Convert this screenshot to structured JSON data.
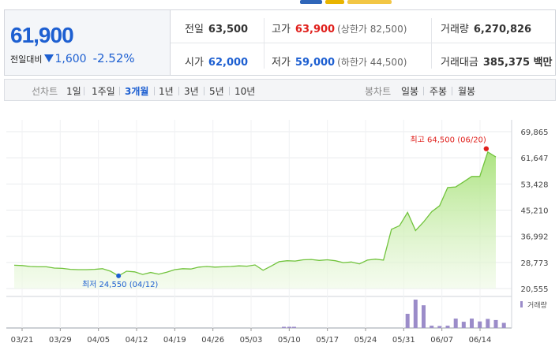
{
  "summary": {
    "price": "61,900",
    "change_label": "전일대비",
    "change_amount": "1,600",
    "change_percent": "-2.52%",
    "prev_close_label": "전일",
    "prev_close": "63,500",
    "high_label": "고가",
    "high": "63,900",
    "upper_limit": "(상한가 82,500)",
    "volume_label": "거래량",
    "volume": "6,270,826",
    "open_label": "시가",
    "open": "62,000",
    "low_label": "저가",
    "low": "59,000",
    "lower_limit": "(하한가 44,500)",
    "amount_label": "거래대금",
    "amount": "385,375 백만"
  },
  "toolbar": {
    "line_label": "선차트",
    "line_periods": [
      "1일",
      "1주일",
      "3개월",
      "1년",
      "3년",
      "5년",
      "10년"
    ],
    "active_period": "3개월",
    "candle_label": "봉차트",
    "candle_periods": [
      "일봉",
      "주봉",
      "월봉"
    ]
  },
  "colors": {
    "up": "#e0201c",
    "down": "#1d5fd1",
    "line": "#71c33c",
    "volume": "#9b8cc9"
  },
  "chart_data": {
    "type": "area",
    "x_tick_labels": [
      "03/21",
      "03/29",
      "04/05",
      "04/12",
      "04/19",
      "04/26",
      "05/03",
      "05/10",
      "05/17",
      "05/24",
      "05/31",
      "06/07",
      "06/14"
    ],
    "y_tick_labels": [
      "69,865",
      "61,647",
      "53,428",
      "45,210",
      "36,992",
      "28,773",
      "20,555"
    ],
    "ylim": [
      20555,
      69865
    ],
    "grid": true,
    "prices": [
      27900,
      27800,
      27500,
      27400,
      27400,
      27000,
      26900,
      26600,
      26500,
      26500,
      26600,
      26800,
      26000,
      24550,
      26000,
      25800,
      25000,
      25600,
      25100,
      25700,
      26500,
      26800,
      26700,
      27300,
      27500,
      27300,
      27400,
      27500,
      27700,
      27600,
      28000,
      26300,
      27600,
      29000,
      29300,
      29200,
      29600,
      29700,
      29400,
      29600,
      29300,
      28700,
      28900,
      28300,
      29500,
      29800,
      29500,
      39200,
      40300,
      44500,
      38800,
      41500,
      44700,
      46600,
      52300,
      52500,
      54100,
      55800,
      55800,
      63500,
      61900
    ],
    "max_annotation": "최고 64,500 (06/20)",
    "min_annotation": "최저 24,550 (04/12)",
    "volume_label": "거래량",
    "volumes": [
      0,
      0,
      0,
      0,
      0,
      0,
      0,
      0,
      0,
      0,
      0,
      0,
      0,
      0,
      0,
      0,
      0,
      0,
      0,
      0,
      0,
      0,
      0,
      0,
      0,
      0,
      0,
      0,
      0,
      0,
      0,
      0,
      0,
      0,
      0,
      0,
      0,
      0,
      0,
      0,
      0,
      0,
      0,
      0,
      0,
      0,
      0,
      0,
      0,
      0.5,
      1.0,
      0.8,
      0.08,
      0.07,
      0.08,
      0.33,
      0.22,
      0.33,
      0.23,
      0.32,
      0.28,
      0.18
    ]
  }
}
